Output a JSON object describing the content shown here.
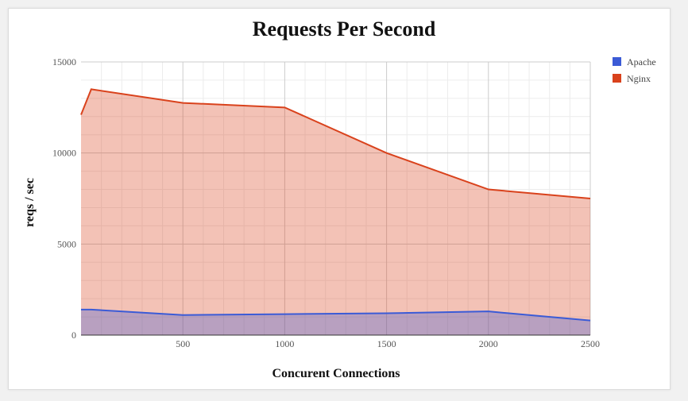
{
  "chart_data": {
    "type": "area",
    "title": "Requests Per Second",
    "xlabel": "Concurent Connections",
    "ylabel": "reqs / sec",
    "xlim": [
      0,
      2500
    ],
    "ylim": [
      0,
      15000
    ],
    "x_ticks": [
      500,
      1000,
      1500,
      2000,
      2500
    ],
    "y_ticks": [
      0,
      5000,
      10000,
      15000
    ],
    "grid": true,
    "legend_position": "right",
    "series": [
      {
        "name": "Apache",
        "color": "#3b5bd6",
        "x": [
          0,
          50,
          500,
          1000,
          1500,
          2000,
          2500
        ],
        "values": [
          1400,
          1400,
          1100,
          1150,
          1200,
          1300,
          800
        ]
      },
      {
        "name": "Nginx",
        "color": "#d9421c",
        "x": [
          0,
          50,
          500,
          1000,
          1500,
          2000,
          2500
        ],
        "values": [
          12100,
          13500,
          12750,
          12500,
          10000,
          8000,
          7500
        ]
      }
    ]
  }
}
